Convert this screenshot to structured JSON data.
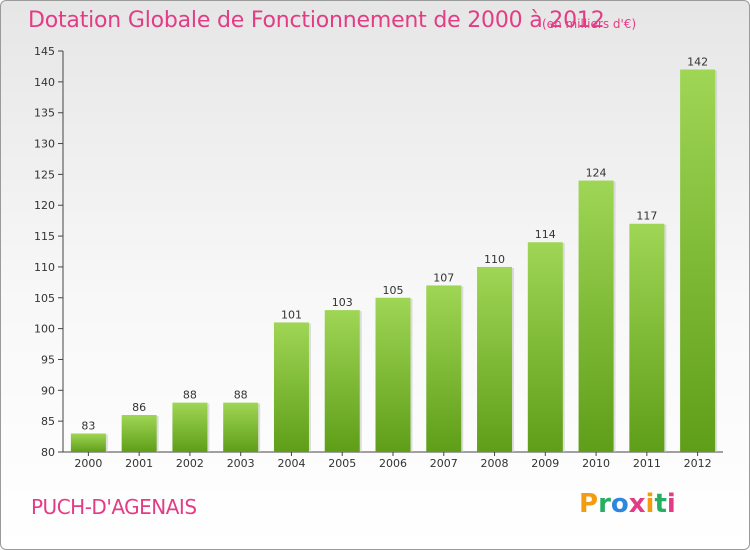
{
  "title": "Dotation Globale de Fonctionnement de 2000 à 2012",
  "subtitle": "(en milliers d'€)",
  "city": "PUCH-D'AGENAIS",
  "logo": {
    "letters": [
      "P",
      "r",
      "o",
      "x",
      "i",
      "t",
      "i"
    ],
    "colors": [
      "#f39c12",
      "#27ae60",
      "#2e86de",
      "#e33c86",
      "#f39c12",
      "#27ae60",
      "#e33c86"
    ]
  },
  "chart_data": {
    "type": "bar",
    "title": "Dotation Globale de Fonctionnement de 2000 à 2012",
    "subtitle": "(en milliers d'€)",
    "xlabel": "",
    "ylabel": "",
    "categories": [
      "2000",
      "2001",
      "2002",
      "2003",
      "2004",
      "2005",
      "2006",
      "2007",
      "2008",
      "2009",
      "2010",
      "2011",
      "2012"
    ],
    "values": [
      83,
      86,
      88,
      88,
      101,
      103,
      105,
      107,
      110,
      114,
      124,
      117,
      142
    ],
    "ylim": [
      80,
      145
    ],
    "yticks": [
      80,
      85,
      90,
      95,
      100,
      105,
      110,
      115,
      120,
      125,
      130,
      135,
      140,
      145
    ],
    "grid": false,
    "legend": "none",
    "bar_color": "#7dc234"
  }
}
